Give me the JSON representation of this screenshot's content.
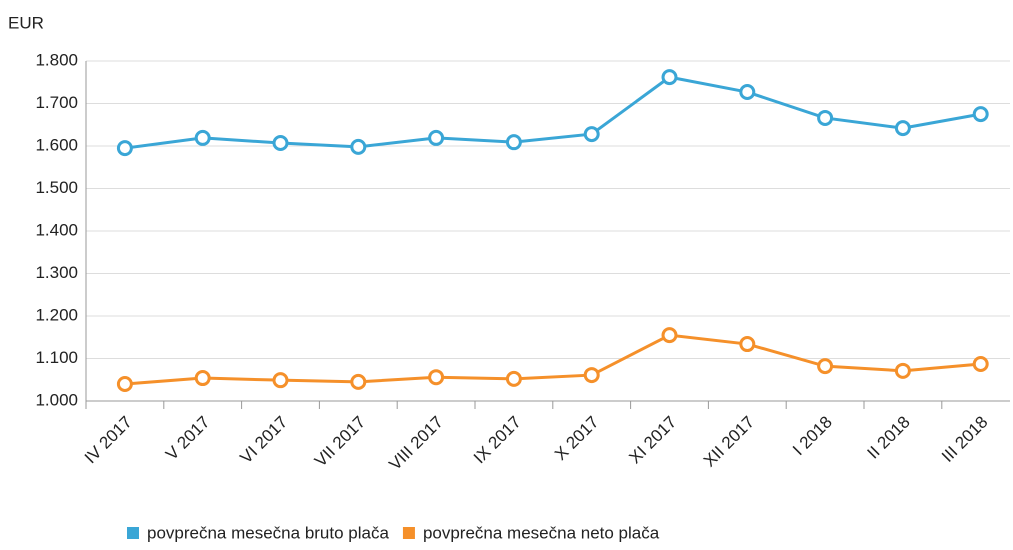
{
  "chart_data": {
    "type": "line",
    "y_label": "EUR",
    "categories": [
      "IV 2017",
      "V 2017",
      "VI 2017",
      "VII 2017",
      "VIII 2017",
      "IX 2017",
      "X 2017",
      "XI 2017",
      "XII 2017",
      "I 2018",
      "II 2018",
      "III 2018"
    ],
    "series": [
      {
        "name": "povprečna mesečna bruto plača",
        "color": "#3aa6d6",
        "values": [
          1595,
          1619,
          1607,
          1598,
          1619,
          1609,
          1628,
          1762,
          1727,
          1666,
          1642,
          1675
        ]
      },
      {
        "name": "povprečna mesečna neto plača",
        "color": "#f5902a",
        "values": [
          1040,
          1054,
          1049,
          1045,
          1056,
          1052,
          1061,
          1155,
          1134,
          1082,
          1071,
          1087
        ]
      }
    ],
    "ylim": [
      1000,
      1800
    ],
    "yticks": [
      {
        "value": 1000,
        "label": "1.000"
      },
      {
        "value": 1100,
        "label": "1.100"
      },
      {
        "value": 1200,
        "label": "1.200"
      },
      {
        "value": 1300,
        "label": "1.300"
      },
      {
        "value": 1400,
        "label": "1.400"
      },
      {
        "value": 1500,
        "label": "1.500"
      },
      {
        "value": 1600,
        "label": "1.600"
      },
      {
        "value": 1700,
        "label": "1.700"
      },
      {
        "value": 1800,
        "label": "1.800"
      }
    ],
    "grid": true
  }
}
